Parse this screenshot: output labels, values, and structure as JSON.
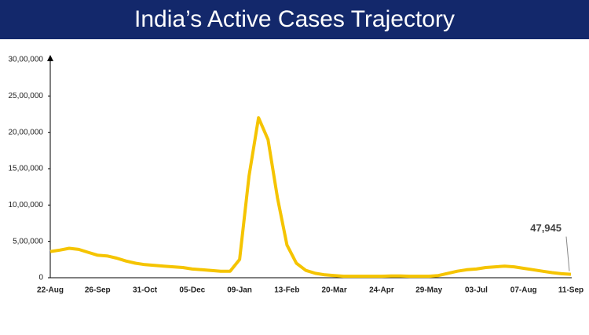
{
  "chart_data": {
    "type": "line",
    "title": "India’s Active Cases Trajectory",
    "categories": [
      "22-Aug",
      null,
      null,
      null,
      null,
      "26-Sep",
      null,
      null,
      null,
      null,
      "31-Oct",
      null,
      null,
      null,
      null,
      "05-Dec",
      null,
      null,
      null,
      null,
      "09-Jan",
      null,
      null,
      null,
      null,
      "13-Feb",
      null,
      null,
      null,
      null,
      "20-Mar",
      null,
      null,
      null,
      null,
      "24-Apr",
      null,
      null,
      null,
      null,
      "29-May",
      null,
      null,
      null,
      null,
      "03-Jul",
      null,
      null,
      null,
      null,
      "07-Aug",
      null,
      null,
      null,
      null,
      "11-Sep"
    ],
    "series": [
      {
        "color": "#f5c400",
        "values": [
          360000,
          380000,
          405000,
          390000,
          350000,
          310000,
          300000,
          270000,
          230000,
          200000,
          180000,
          170000,
          160000,
          150000,
          140000,
          120000,
          110000,
          100000,
          90000,
          90000,
          250000,
          1400000,
          2200000,
          1900000,
          1100000,
          450000,
          200000,
          100000,
          60000,
          40000,
          30000,
          20000,
          20000,
          20000,
          20000,
          20000,
          25000,
          25000,
          20000,
          20000,
          20000,
          30000,
          60000,
          90000,
          110000,
          120000,
          140000,
          150000,
          160000,
          150000,
          130000,
          110000,
          90000,
          70000,
          55000,
          47945
        ],
        "value_labels": [
          null,
          null,
          null,
          null,
          null,
          null,
          null,
          null,
          null,
          null,
          null,
          null,
          null,
          null,
          null,
          null,
          null,
          null,
          null,
          null,
          null,
          null,
          null,
          null,
          null,
          null,
          null,
          null,
          null,
          null,
          null,
          null,
          null,
          null,
          null,
          null,
          null,
          null,
          null,
          null,
          null,
          null,
          null,
          null,
          null,
          null,
          null,
          null,
          null,
          null,
          null,
          null,
          null,
          null,
          null,
          "47,945"
        ]
      }
    ],
    "ylim": [
      0,
      3000000
    ],
    "yticks": [
      0,
      {
        "value": 500000,
        "label": "5,00,000"
      },
      {
        "value": 1000000,
        "label": "10,00,000"
      },
      {
        "value": 1500000,
        "label": "15,00,000"
      },
      {
        "value": 2000000,
        "label": "20,00,000"
      },
      {
        "value": 2500000,
        "label": "25,00,000"
      },
      {
        "value": 3000000,
        "label": "30,00,000"
      }
    ]
  }
}
